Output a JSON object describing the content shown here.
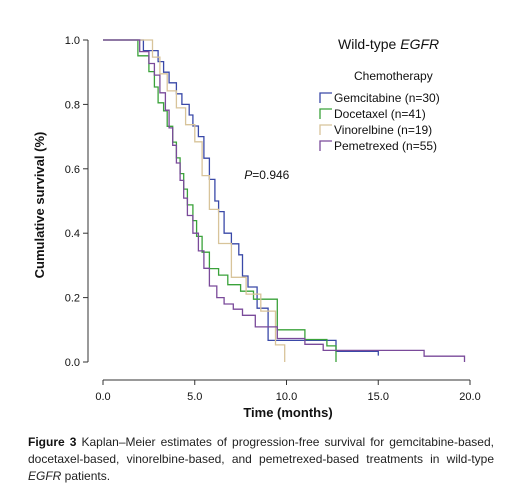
{
  "chart_data": {
    "type": "line",
    "step": true,
    "title": "Wild-type EGFR",
    "title_parts": [
      {
        "text": "Wild-type ",
        "italic": false
      },
      {
        "text": "EGFR",
        "italic": true
      }
    ],
    "xlabel": "Time (months)",
    "ylabel": "Cumulative survival (%)",
    "xlim": [
      0,
      20
    ],
    "ylim": [
      0,
      1
    ],
    "xticks": [
      0,
      5,
      10,
      15,
      20
    ],
    "xtick_labels": [
      "0.0",
      "5.0",
      "10.0",
      "15.0",
      "20.0"
    ],
    "yticks": [
      0,
      0.2,
      0.4,
      0.6,
      0.8,
      1.0
    ],
    "ytick_labels": [
      "0.0",
      "0.2",
      "0.4",
      "0.6",
      "0.8",
      "1.0"
    ],
    "grid": false,
    "legend_title": "Chemotherapy",
    "legend_position": "top-right",
    "annotation": {
      "prefix": "P",
      "text": "=0.946",
      "x": 3.9,
      "y": 0.58
    },
    "series": [
      {
        "name": "Gemcitabine (n=30)",
        "color": "#3a49a8",
        "x": [
          0,
          2.2,
          3.0,
          3.3,
          3.6,
          4.0,
          4.3,
          4.7,
          4.9,
          5.2,
          5.5,
          5.8,
          6.1,
          6.3,
          6.6,
          7.0,
          7.4,
          7.6,
          7.9,
          8.4,
          9.0,
          12.7,
          15.0
        ],
        "y": [
          1.0,
          0.967,
          0.933,
          0.9,
          0.867,
          0.833,
          0.8,
          0.767,
          0.733,
          0.7,
          0.633,
          0.567,
          0.5,
          0.467,
          0.4,
          0.367,
          0.333,
          0.267,
          0.233,
          0.167,
          0.067,
          0.033,
          0.02
        ]
      },
      {
        "name": "Docetaxel (n=41)",
        "color": "#3aa23a",
        "x": [
          0,
          1.9,
          2.5,
          2.8,
          3.0,
          3.3,
          3.5,
          3.8,
          4.0,
          4.2,
          4.4,
          4.6,
          4.9,
          5.1,
          5.4,
          5.8,
          6.3,
          6.8,
          7.5,
          8.2,
          9.5,
          11.0,
          12.2,
          12.7
        ],
        "y": [
          1.0,
          0.951,
          0.902,
          0.854,
          0.805,
          0.78,
          0.732,
          0.683,
          0.634,
          0.585,
          0.537,
          0.488,
          0.439,
          0.39,
          0.341,
          0.29,
          0.27,
          0.24,
          0.22,
          0.195,
          0.1,
          0.07,
          0.05,
          0.0
        ]
      },
      {
        "name": "Vinorelbine (n=19)",
        "color": "#d8c49a",
        "x": [
          0,
          2.7,
          3.1,
          3.5,
          4.0,
          4.5,
          5.0,
          5.4,
          5.8,
          6.3,
          7.0,
          7.8,
          8.6,
          9.4,
          9.9
        ],
        "y": [
          1.0,
          0.947,
          0.895,
          0.842,
          0.789,
          0.737,
          0.684,
          0.579,
          0.474,
          0.368,
          0.263,
          0.211,
          0.158,
          0.053,
          0.0
        ]
      },
      {
        "name": "Pemetrexed (n=55)",
        "color": "#7a4a9a",
        "x": [
          0,
          2.0,
          2.5,
          2.8,
          3.1,
          3.4,
          3.6,
          3.8,
          4.0,
          4.2,
          4.4,
          4.6,
          4.9,
          5.2,
          5.5,
          5.8,
          6.2,
          6.6,
          7.1,
          7.6,
          8.3,
          9.5,
          11.0,
          12.0,
          17.5,
          19.7
        ],
        "y": [
          1.0,
          0.964,
          0.927,
          0.891,
          0.836,
          0.782,
          0.727,
          0.673,
          0.618,
          0.564,
          0.509,
          0.455,
          0.4,
          0.345,
          0.291,
          0.236,
          0.2,
          0.18,
          0.164,
          0.145,
          0.109,
          0.073,
          0.055,
          0.036,
          0.018,
          0.0
        ]
      }
    ]
  },
  "caption": {
    "figure_label": "Figure 3",
    "text_before_italic": "Kaplan–Meier estimates of progression-free survival for gemcitabine-based, docetaxel-based, vinorelbine-based, and pemetrexed-based treatments in wild-type ",
    "italic_text": "EGFR",
    "text_after_italic": " patients."
  }
}
